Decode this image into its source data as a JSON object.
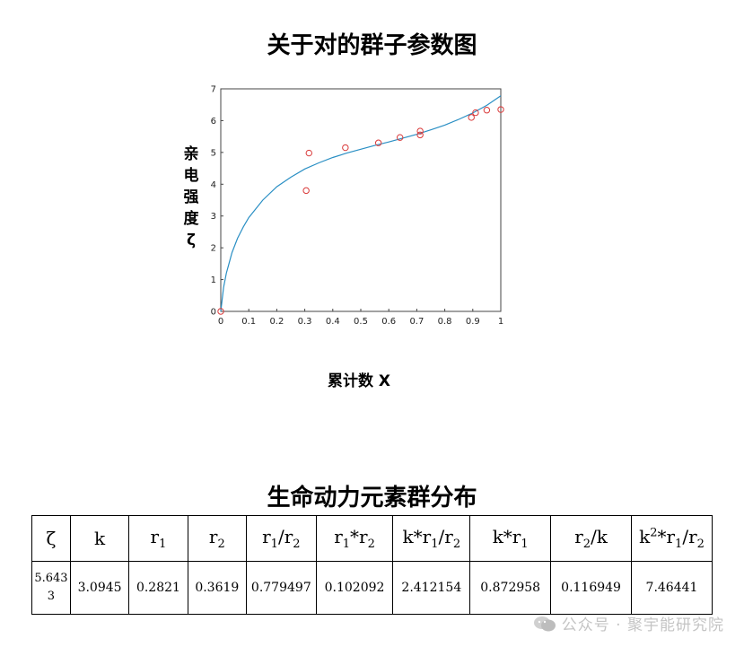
{
  "chart_data": {
    "type": "scatter",
    "title": "关于对的群子参数图",
    "xlabel": "累计数 X",
    "ylabel": "亲电强度ζ",
    "xlim": [
      0,
      1
    ],
    "ylim": [
      0,
      7
    ],
    "xticks": [
      "0",
      "0.1",
      "0.2",
      "0.3",
      "0.4",
      "0.5",
      "0.6",
      "0.7",
      "0.8",
      "0.9",
      "1"
    ],
    "yticks": [
      "0",
      "1",
      "2",
      "3",
      "4",
      "5",
      "6",
      "7"
    ],
    "points": {
      "x": [
        0,
        0.305,
        0.315,
        0.445,
        0.563,
        0.64,
        0.712,
        0.712,
        0.895,
        0.91,
        0.95,
        1.0
      ],
      "y": [
        0,
        3.8,
        4.98,
        5.15,
        5.3,
        5.47,
        5.55,
        5.67,
        6.1,
        6.25,
        6.33,
        6.35
      ]
    },
    "fit_curve": {
      "x": [
        0,
        0.01,
        0.02,
        0.04,
        0.06,
        0.08,
        0.1,
        0.15,
        0.2,
        0.25,
        0.3,
        0.35,
        0.4,
        0.45,
        0.5,
        0.55,
        0.6,
        0.65,
        0.7,
        0.75,
        0.8,
        0.85,
        0.9,
        0.95,
        1.0
      ],
      "y": [
        0,
        0.75,
        1.2,
        1.85,
        2.3,
        2.65,
        2.95,
        3.5,
        3.92,
        4.22,
        4.48,
        4.67,
        4.84,
        4.98,
        5.1,
        5.22,
        5.33,
        5.45,
        5.57,
        5.71,
        5.86,
        6.04,
        6.24,
        6.48,
        6.78
      ]
    },
    "colors": {
      "points": "#d93a3a",
      "curve": "#2a8fc4"
    },
    "grid": false
  },
  "table": {
    "title": "生命动力元素群分布",
    "headers": [
      [
        "ζ",
        ""
      ],
      [
        "k",
        ""
      ],
      [
        "r",
        "1"
      ],
      [
        "r",
        "2"
      ],
      [
        "r",
        "1",
        "/r",
        "2"
      ],
      [
        "r",
        "1",
        "*r",
        "2"
      ],
      [
        "k*r",
        "1",
        "/r",
        "2"
      ],
      [
        "k*r",
        "1"
      ],
      [
        "r",
        "2",
        "/k"
      ],
      [
        "k",
        "2",
        "*r",
        "1",
        "/r",
        "2"
      ]
    ],
    "values": [
      "5.6433",
      "3.0945",
      "0.2821",
      "0.3619",
      "0.779497",
      "0.102092",
      "2.412154",
      "0.872958",
      "0.116949",
      "7.46441"
    ]
  },
  "watermark": {
    "text": "公众号 · 聚宇能研究院"
  }
}
